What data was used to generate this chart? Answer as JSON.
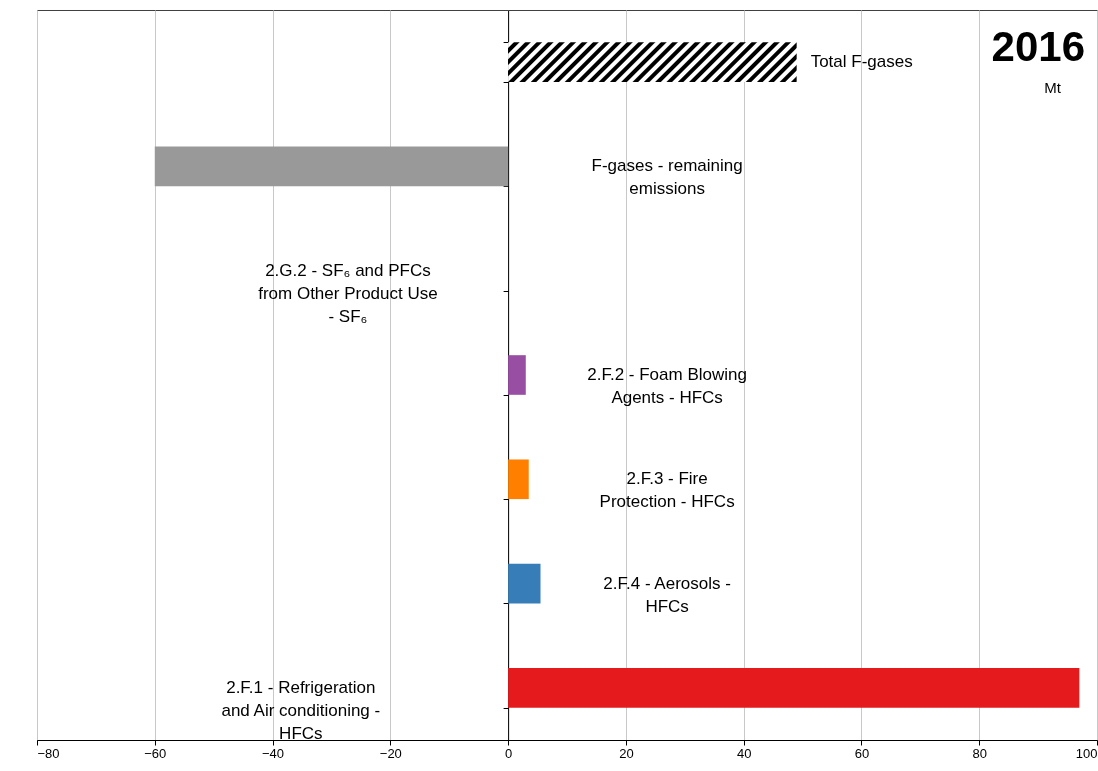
{
  "chart_data": {
    "type": "bar",
    "orientation": "horizontal",
    "title": "2016",
    "subtitle": "Mt",
    "categories": [
      "Total F-gases",
      "F-gases - remaining emissions",
      "2.G.2 - SF₆ and PFCs from Other Product Use - SF₆",
      "2.F.2 - Foam Blowing Agents - HFCs",
      "2.F.3 - Fire Protection - HFCs",
      "2.F.4 - Aerosols - HFCs",
      "2.F.1 - Refrigeration and Air conditioning - HFCs"
    ],
    "values": [
      49,
      -60,
      0,
      3,
      3.5,
      5.5,
      97
    ],
    "colors": [
      "#000000",
      "#999999",
      "#a0a0a0",
      "#984ea3",
      "#ff7f00",
      "#377eb8",
      "#e41a1c"
    ],
    "xlim": [
      -80,
      100
    ],
    "xticks": [
      -80,
      -60,
      -40,
      -20,
      0,
      20,
      40,
      60,
      80,
      100
    ],
    "grid": "x",
    "tick_labels": "x"
  }
}
